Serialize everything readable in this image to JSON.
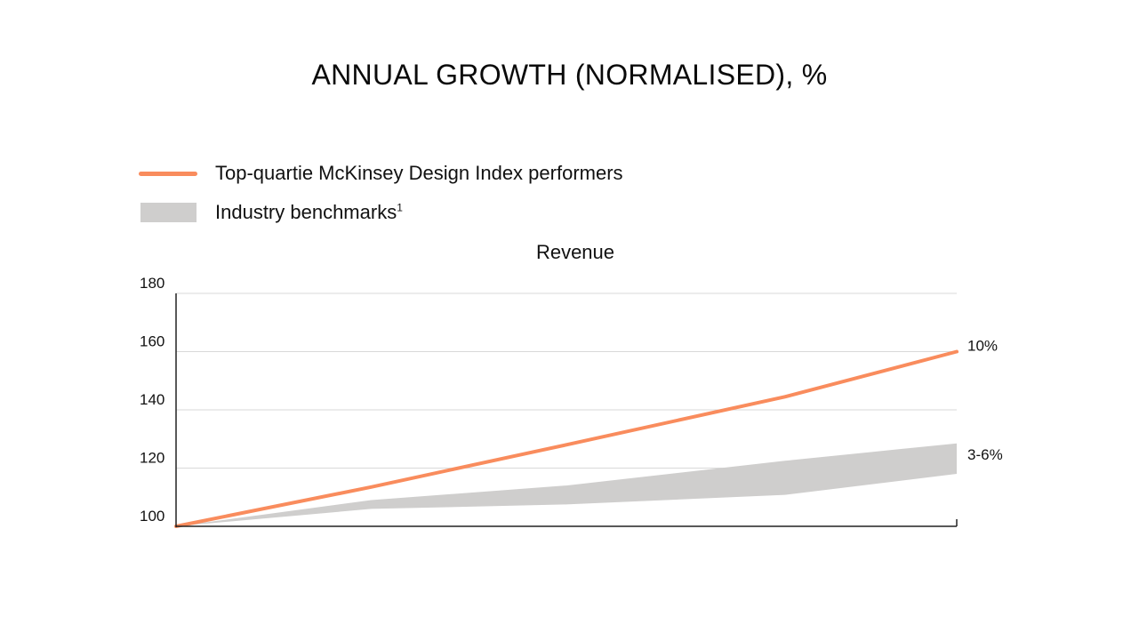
{
  "page": {
    "title": "ANNUAL GROWTH (NORMALISED), %"
  },
  "legend": {
    "items": [
      {
        "label": "Top-quartie McKinsey Design Index performers",
        "swatch": "line",
        "color": "#f98c5d"
      },
      {
        "label": "Industry benchmarks",
        "superscript": "1",
        "swatch": "band",
        "color": "#cfcecd"
      }
    ]
  },
  "chart_data": {
    "type": "line",
    "title": "Revenue",
    "xlabel": "",
    "ylabel": "",
    "x": [
      0,
      0.25,
      0.5,
      0.78,
      1
    ],
    "ylim": [
      100,
      180
    ],
    "yticks": [
      100,
      120,
      140,
      160,
      180
    ],
    "grid": true,
    "series": [
      {
        "name": "Top-quartie McKinsey Design Index performers",
        "kind": "line",
        "color": "#f98c5d",
        "values": [
          100,
          113.5,
          128,
          144.5,
          160
        ],
        "end_label": "10%"
      },
      {
        "name": "Industry benchmarks",
        "kind": "band",
        "color": "#cfcecd",
        "upper": [
          100,
          109,
          114,
          122.5,
          128.5
        ],
        "lower": [
          100,
          106,
          107.5,
          110.8,
          118
        ],
        "end_label": "3-6%"
      }
    ],
    "annotations": [
      {
        "text": "10%",
        "series": 0
      },
      {
        "text": "3-6%",
        "series": 1
      }
    ]
  }
}
